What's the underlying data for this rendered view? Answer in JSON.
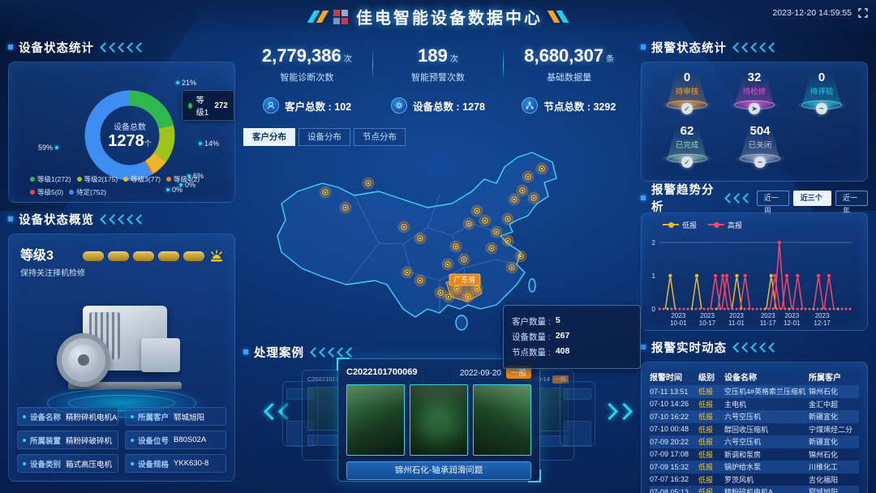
{
  "header": {
    "title": "佳电智能设备数据中心",
    "datetime": "2023-12-20 14:59:55"
  },
  "left": {
    "status": {
      "title": "设备状态统计",
      "tooltip": {
        "name": "等级1",
        "value": "272",
        "color": "#2fb84f"
      }
    },
    "overview": {
      "title": "设备状态概览",
      "level": "等级3",
      "advice": "保持关注择机检修",
      "gauge_segments": 5,
      "fields": [
        {
          "label": "设备名称",
          "value": "精粉碎机电机A"
        },
        {
          "label": "所属客户",
          "value": "郓城旭阳"
        },
        {
          "label": "所属装置",
          "value": "精粉碎破碎机"
        },
        {
          "label": "设备位号",
          "value": "B80S02A"
        },
        {
          "label": "设备类别",
          "value": "箱式高压电机"
        },
        {
          "label": "设备规格",
          "value": "YKK630-8"
        }
      ]
    }
  },
  "center": {
    "stats": [
      {
        "value": "2,779,386",
        "unit": "次",
        "label": "智能诊断次数"
      },
      {
        "value": "189",
        "unit": "次",
        "label": "智能预警次数"
      },
      {
        "value": "8,680,307",
        "unit": "条",
        "label": "基础数据量"
      }
    ],
    "totals": [
      {
        "icon": "customer-icon",
        "label": "客户总数",
        "value": "102"
      },
      {
        "icon": "device-icon",
        "label": "设备总数",
        "value": "1278"
      },
      {
        "icon": "node-icon",
        "label": "节点总数",
        "value": "3292"
      }
    ],
    "map": {
      "tabs": [
        {
          "label": "客户分布",
          "active": true
        },
        {
          "label": "设备分布",
          "active": false
        },
        {
          "label": "节点分布",
          "active": false
        }
      ],
      "region_label": "广东省",
      "tooltip": [
        {
          "label": "客户数量",
          "value": "5"
        },
        {
          "label": "设备数量",
          "value": "267"
        },
        {
          "label": "节点数量",
          "value": "408"
        }
      ],
      "dots": [
        [
          325,
          38
        ],
        [
          342,
          28
        ],
        [
          318,
          55
        ],
        [
          308,
          66
        ],
        [
          332,
          64
        ],
        [
          300,
          90
        ],
        [
          262,
          80
        ],
        [
          272,
          92
        ],
        [
          252,
          96
        ],
        [
          286,
          106
        ],
        [
          300,
          117
        ],
        [
          280,
          126
        ],
        [
          236,
          124
        ],
        [
          246,
          140
        ],
        [
          226,
          146
        ],
        [
          192,
          114
        ],
        [
          172,
          100
        ],
        [
          75,
          57
        ],
        [
          128,
          46
        ],
        [
          100,
          76
        ],
        [
          176,
          156
        ],
        [
          192,
          166
        ],
        [
          316,
          136
        ],
        [
          305,
          150
        ],
        [
          237,
          176
        ],
        [
          251,
          186
        ],
        [
          227,
          186
        ],
        [
          262,
          176
        ],
        [
          217,
          181
        ]
      ]
    },
    "cases": {
      "title": "处理案例",
      "main": {
        "code": "C2022101700069",
        "date": "2022-09-20",
        "badge": "一般",
        "caption": "锦州石化-轴承润滑问题",
        "photo_count": 3
      },
      "side_left": {
        "code": "C20221017"
      },
      "side_right": {
        "date": "2022-10-14",
        "badge": "一般"
      }
    }
  },
  "right": {
    "alarm_status": {
      "title": "报警状态统计",
      "items": [
        {
          "value": "0",
          "label": "待审核",
          "color": "#ffa227",
          "icon": "check-icon",
          "glyph": "✓"
        },
        {
          "value": "32",
          "label": "待检修",
          "color": "#f04fd0",
          "icon": "repair-icon",
          "glyph": "➤"
        },
        {
          "value": "0",
          "label": "待评验",
          "color": "#27d4f0",
          "icon": "verify-icon",
          "glyph": "~"
        },
        {
          "value": "62",
          "label": "已完成",
          "color": "#9fd8b8",
          "icon": "done-icon",
          "glyph": "✓"
        },
        {
          "value": "504",
          "label": "已关闭",
          "color": "#b8c4d4",
          "icon": "closed-icon",
          "glyph": "−"
        }
      ]
    },
    "alarm_trend": {
      "title": "报警趋势分析",
      "buttons": [
        {
          "label": "近一周",
          "active": false
        },
        {
          "label": "近三个月",
          "active": true
        },
        {
          "label": "近一年",
          "active": false
        }
      ]
    },
    "alarm_feed": {
      "title": "报警实时动态",
      "columns": [
        "报警时间",
        "级别",
        "设备名称",
        "所属客户"
      ],
      "rows": [
        [
          "07-11 13:51",
          "低报",
          "空压机4#英格索兰压缩机",
          "锦州石化"
        ],
        [
          "07-10 14:26",
          "低报",
          "主电机",
          "金汇中超"
        ],
        [
          "07-10 16:22",
          "低报",
          "六号空压机",
          "新疆宜化"
        ],
        [
          "07-10 00:48",
          "低报",
          "醇回收压缩机",
          "宁煤烯烃二分"
        ],
        [
          "07-09 20:22",
          "低报",
          "六号空压机",
          "新疆宜化"
        ],
        [
          "07-09 17:08",
          "低报",
          "新调和泵房",
          "锦州石化"
        ],
        [
          "07-09 15:32",
          "低报",
          "锅炉给水泵",
          "川维化工"
        ],
        [
          "07-07 16:32",
          "低报",
          "罗茨风机",
          "吉化福阳"
        ],
        [
          "07-08 05:13",
          "低报",
          "精粉碎机电机A",
          "郓城旭阳"
        ]
      ]
    }
  },
  "chart_data": [
    {
      "type": "pie",
      "title": "设备状态统计",
      "labels": [
        "等级1",
        "等级2",
        "等级3",
        "等级4",
        "等级5",
        "待定"
      ],
      "values": [
        272,
        175,
        77,
        2,
        0,
        752
      ],
      "percent_labels": [
        "21%",
        "14%",
        "6%",
        "0%",
        "0%",
        "59%"
      ],
      "colors": [
        "#2fb84f",
        "#9fc41e",
        "#f0b429",
        "#f2811d",
        "#e94b4b",
        "#3e8df2"
      ],
      "legend": [
        "等级1(272)",
        "等级2(175)",
        "等级3(77)",
        "等级4(2)",
        "等级5(0)",
        "待定(752)"
      ],
      "center": {
        "label": "设备总数",
        "value": "1278",
        "unit": "个"
      }
    },
    {
      "type": "line",
      "title": "报警趋势分析",
      "ylim": [
        0,
        2
      ],
      "yticks": [
        0,
        1,
        2
      ],
      "x_ticks": [
        {
          "f": 0.098,
          "year": "2023",
          "md": "10-01"
        },
        {
          "f": 0.248,
          "year": "2023",
          "md": "10-17"
        },
        {
          "f": 0.399,
          "year": "2023",
          "md": "11-01"
        },
        {
          "f": 0.562,
          "year": "2023",
          "md": "11-17"
        },
        {
          "f": 0.686,
          "year": "2023",
          "md": "12-01"
        },
        {
          "f": 0.843,
          "year": "2023",
          "md": "12-17"
        }
      ],
      "series": [
        {
          "name": "低报",
          "color": "#e9b832",
          "points": [
            {
              "f": 0.056,
              "date": "09-27",
              "value": 1
            },
            {
              "f": 0.193,
              "date": "10-11",
              "value": 1
            },
            {
              "f": 0.401,
              "date": "11-01",
              "value": 1
            },
            {
              "f": 0.579,
              "date": "11-20",
              "value": 1
            }
          ]
        },
        {
          "name": "高报",
          "color": "#f2466e",
          "points": [
            {
              "f": 0.29,
              "date": "10-21",
              "value": 1
            },
            {
              "f": 0.328,
              "date": "10-25",
              "value": 1
            },
            {
              "f": 0.349,
              "date": "10-27",
              "value": 1
            },
            {
              "f": 0.444,
              "date": "11-06",
              "value": 1
            },
            {
              "f": 0.598,
              "date": "11-22",
              "value": 1
            },
            {
              "f": 0.621,
              "date": "11-24",
              "value": 2
            },
            {
              "f": 0.66,
              "date": "11-28",
              "value": 1
            },
            {
              "f": 0.716,
              "date": "12-04",
              "value": 1
            },
            {
              "f": 0.824,
              "date": "12-15",
              "value": 1
            },
            {
              "f": 0.878,
              "date": "12-20",
              "value": 1
            }
          ]
        }
      ]
    }
  ]
}
